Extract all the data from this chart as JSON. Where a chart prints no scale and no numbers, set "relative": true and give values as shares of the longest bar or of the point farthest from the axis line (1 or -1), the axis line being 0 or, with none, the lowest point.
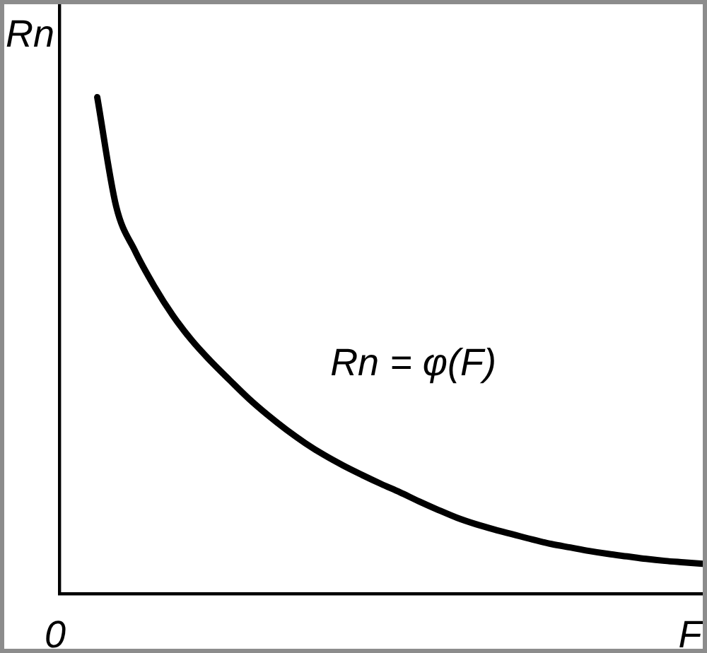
{
  "chart_data": {
    "type": "line",
    "xlabel": "F",
    "ylabel": "Rn",
    "annotations": [
      "0"
    ],
    "relative": true,
    "categories": [
      null,
      null,
      null,
      null,
      null,
      null,
      null,
      null,
      null,
      null,
      null,
      null,
      null,
      null,
      null,
      null,
      null,
      null,
      null,
      null,
      null,
      null,
      null,
      null,
      null,
      null,
      null,
      null,
      null,
      null,
      null,
      null,
      null,
      null,
      null
    ],
    "series": [
      {
        "name": "Rn = φ(F)",
        "color": "#000000",
        "values": [
          null,
          null,
          1.0,
          0.78,
          0.69,
          0.62,
          0.56,
          0.51,
          0.468,
          0.43,
          0.393,
          0.36,
          0.33,
          0.303,
          0.279,
          0.258,
          0.239,
          0.221,
          0.204,
          0.186,
          0.169,
          0.153,
          0.14,
          0.129,
          0.119,
          0.109,
          0.1,
          0.093,
          0.086,
          0.08,
          0.075,
          0.07,
          0.066,
          0.063,
          0.06
        ]
      }
    ],
    "legend": false,
    "grid": false,
    "marker": "none",
    "line_style": "solid"
  }
}
